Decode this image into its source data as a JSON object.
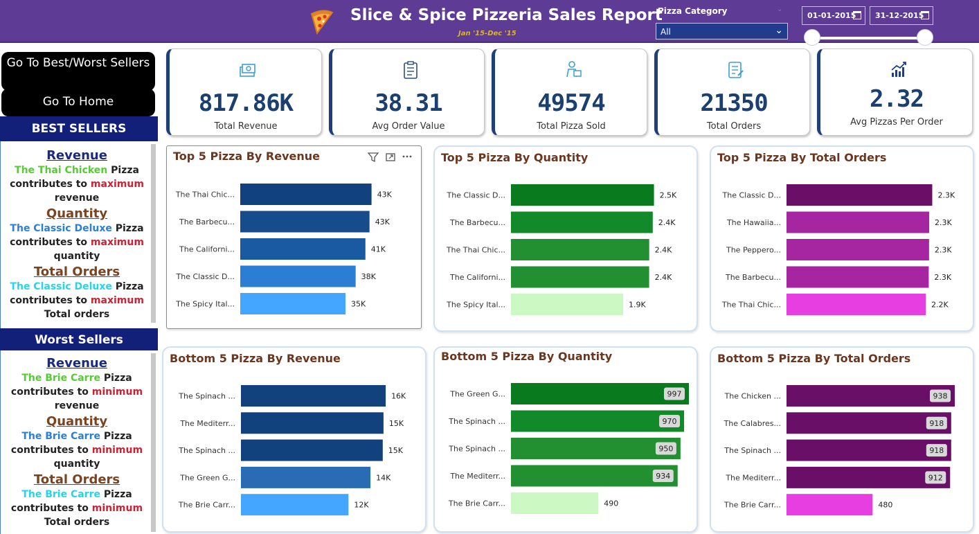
{
  "header": {
    "title": "Slice & Spice Pizzeria Sales Report",
    "subtitle": "Jan '15-Dec '15",
    "category_label": "Pizza Category",
    "category_value": "All",
    "date_start": "01-01-2015",
    "date_end": "31-12-2015",
    "date_range_fraction": [
      0,
      1
    ]
  },
  "nav": {
    "best_worst_label": "Go To Best/Worst Sellers",
    "home_label": "Go To Home"
  },
  "best_sellers": {
    "heading": "BEST SELLERS",
    "items": [
      {
        "metric": "Revenue",
        "pizza": "The Thai Chicken",
        "word": "Pizza",
        "phrase": "contributes to",
        "extreme": "maximum",
        "measure": "revenue"
      },
      {
        "metric": "Quantity",
        "pizza": "The Classic Deluxe",
        "word": "Pizza",
        "phrase": "contributes to",
        "extreme": "maximum",
        "measure": "quantity"
      },
      {
        "metric": "Total Orders",
        "pizza": "The Classic Deluxe",
        "word": "Pizza",
        "phrase": "contributes to",
        "extreme": "maximum",
        "measure": "Total orders"
      }
    ]
  },
  "worst_sellers": {
    "heading": "Worst Sellers",
    "items": [
      {
        "metric": "Revenue",
        "pizza": "The Brie Carre",
        "word": "Pizza",
        "phrase": "contributes to",
        "extreme": "minimum",
        "measure": "revenue"
      },
      {
        "metric": "Quantity",
        "pizza": "The Brie Carre",
        "word": "Pizza",
        "phrase": "contributes to",
        "extreme": "minimum",
        "measure": "quantity"
      },
      {
        "metric": "Total Orders",
        "pizza": "The Brie Carre",
        "word": "Pizza",
        "phrase": "contributes to",
        "extreme": "minimum",
        "measure": "Total orders"
      }
    ]
  },
  "kpis": [
    {
      "value": "817.86K",
      "label": "Total Revenue",
      "icon": "money-icon"
    },
    {
      "value": "38.31",
      "label": "Avg Order Value",
      "icon": "clipboard-icon"
    },
    {
      "value": "49574",
      "label": "Total Pizza Sold",
      "icon": "delivery-icon"
    },
    {
      "value": "21350",
      "label": "Total Orders",
      "icon": "order-list-icon"
    },
    {
      "value": "2.32",
      "label": "Avg Pizzas Per Order",
      "icon": "growth-chart-icon"
    }
  ],
  "chart_data": [
    {
      "type": "bar",
      "orientation": "horizontal",
      "title": "Top 5 Pizza By Revenue",
      "categories": [
        "The Thai Chic...",
        "The Barbecu...",
        "The Californi...",
        "The Classic D...",
        "The Spicy Ital..."
      ],
      "values": [
        43434,
        42768,
        41410,
        38180,
        34831
      ],
      "labels": [
        "43K",
        "43K",
        "41K",
        "38K",
        "35K"
      ],
      "colors": [
        "#12427e",
        "#164b8c",
        "#1a5aa2",
        "#2a7fd4",
        "#45a6ff"
      ],
      "label_style": "outside",
      "xlim": [
        0,
        52000
      ]
    },
    {
      "type": "bar",
      "orientation": "horizontal",
      "title": "Top 5 Pizza By Quantity",
      "categories": [
        "The Classic D...",
        "The Barbecu...",
        "The Thai Chic...",
        "The Californi...",
        "The Spicy Ital..."
      ],
      "values": [
        2453,
        2432,
        2371,
        2370,
        1924
      ],
      "labels": [
        "2.5K",
        "2.4K",
        "2.4K",
        "2.4K",
        "1.9K"
      ],
      "colors": [
        "#0a7a1e",
        "#138a2a",
        "#229030",
        "#229030",
        "#ccf8c4"
      ],
      "label_style": "outside",
      "xlim": [
        0,
        2850
      ]
    },
    {
      "type": "bar",
      "orientation": "horizontal",
      "title": "Top 5 Pizza By Total Orders",
      "categories": [
        "The Classic D...",
        "The Hawaiia...",
        "The Peppero...",
        "The Barbecu...",
        "The Thai Chic..."
      ],
      "values": [
        2329,
        2280,
        2278,
        2273,
        2225
      ],
      "labels": [
        "2.3K",
        "2.3K",
        "2.3K",
        "2.3K",
        "2.2K"
      ],
      "colors": [
        "#6a0f68",
        "#a526a0",
        "#a526a0",
        "#a526a0",
        "#e63ee0"
      ],
      "label_style": "outside",
      "xlim": [
        0,
        2700
      ]
    },
    {
      "type": "bar",
      "orientation": "horizontal",
      "title": "Bottom 5 Pizza By Revenue",
      "categories": [
        "The Spinach ...",
        "The Mediterr...",
        "The Spinach ...",
        "The Green G...",
        "The Brie Carr..."
      ],
      "values": [
        15596,
        15360,
        15278,
        13956,
        11588
      ],
      "labels": [
        "16K",
        "15K",
        "15K",
        "14K",
        "12K"
      ],
      "colors": [
        "#12427e",
        "#12427e",
        "#12427e",
        "#2a6cb4",
        "#45a6ff"
      ],
      "label_style": "outside",
      "xlim": [
        0,
        18500
      ]
    },
    {
      "type": "bar",
      "orientation": "horizontal",
      "title": "Bottom 5 Pizza By Quantity",
      "categories": [
        "The Green G...",
        "The Spinach ...",
        "The Spinach ...",
        "The Mediterr...",
        "The Brie Carr..."
      ],
      "values": [
        997,
        970,
        950,
        934,
        490
      ],
      "labels": [
        "997",
        "970",
        "950",
        "934",
        "490"
      ],
      "colors": [
        "#0a7a1e",
        "#138a2a",
        "#229030",
        "#229030",
        "#ccf8c4"
      ],
      "label_style": "inside",
      "xlim": [
        0,
        997
      ]
    },
    {
      "type": "bar",
      "orientation": "horizontal",
      "title": "Bottom 5 Pizza By Total Orders",
      "categories": [
        "The Chicken ...",
        "The Calabres...",
        "The Spinach ...",
        "The Mediterr...",
        "The Brie Carr..."
      ],
      "values": [
        938,
        918,
        918,
        912,
        480
      ],
      "labels": [
        "938",
        "918",
        "918",
        "912",
        "480"
      ],
      "colors": [
        "#6a0f68",
        "#6a0f68",
        "#6a0f68",
        "#6a0f68",
        "#e63ee0"
      ],
      "label_style": "inside",
      "xlim": [
        0,
        938
      ]
    }
  ]
}
